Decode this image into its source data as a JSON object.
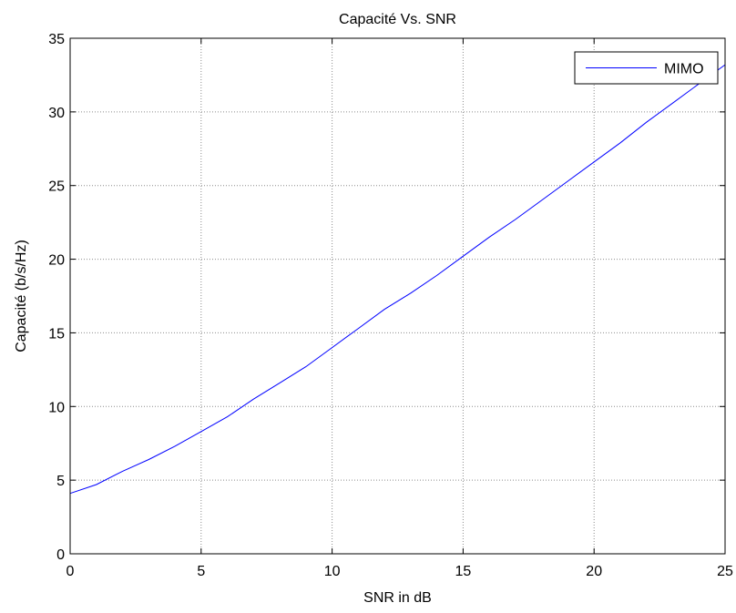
{
  "chart_data": {
    "type": "line",
    "title": "Capacité Vs. SNR",
    "xlabel": "SNR in dB",
    "ylabel": "Capacité (b/s/Hz)",
    "xlim": [
      0,
      25
    ],
    "ylim": [
      0,
      35
    ],
    "xticks": [
      0,
      5,
      10,
      15,
      20,
      25
    ],
    "yticks": [
      0,
      5,
      10,
      15,
      20,
      25,
      30,
      35
    ],
    "grid": true,
    "legend_position": "top-right",
    "series": [
      {
        "name": "MIMO",
        "color": "#0000ff",
        "x": [
          0,
          1,
          2,
          3,
          4,
          5,
          6,
          7,
          8,
          9,
          10,
          11,
          12,
          13,
          14,
          15,
          16,
          17,
          18,
          19,
          20,
          21,
          22,
          23,
          24,
          25
        ],
        "y": [
          4.1,
          4.7,
          5.6,
          6.4,
          7.3,
          8.3,
          9.3,
          10.5,
          11.6,
          12.7,
          14.0,
          15.3,
          16.6,
          17.7,
          18.9,
          20.2,
          21.5,
          22.7,
          24.0,
          25.3,
          26.6,
          27.9,
          29.3,
          30.6,
          31.9,
          33.2
        ]
      }
    ]
  }
}
